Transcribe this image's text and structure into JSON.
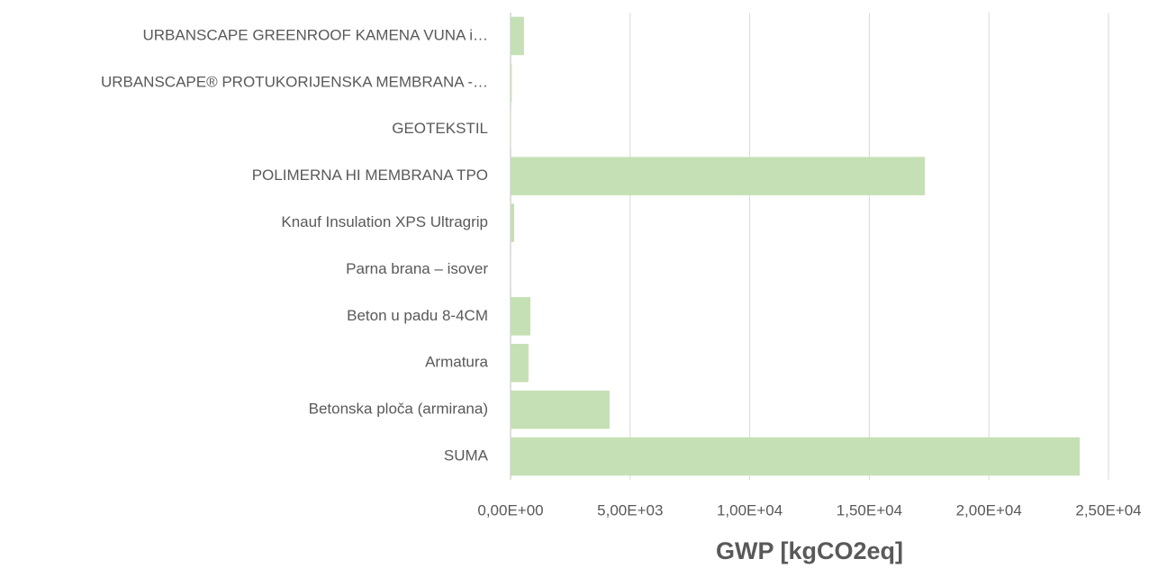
{
  "chart_data": {
    "type": "bar",
    "orientation": "horizontal",
    "categories": [
      "URBANSCAPE GREENROOF KAMENA VUNA i…",
      "URBANSCAPE® PROTUKORIJENSKA MEMBRANA -…",
      "GEOTEKSTIL",
      "POLIMERNA HI MEMBRANA TPO",
      "Knauf Insulation XPS Ultragrip",
      "Parna brana – isover",
      "Beton u padu 8-4CM",
      "Armatura",
      "Betonska ploča (armirana)",
      "SUMA"
    ],
    "values": [
      560,
      50,
      20,
      17320,
      150,
      10,
      830,
      750,
      4140,
      23800
    ],
    "color": "#c5e0b4",
    "xlim": [
      0,
      25000
    ],
    "xticks": [
      {
        "value": 0,
        "label": "0,00E+00"
      },
      {
        "value": 5000,
        "label": "5,00E+03"
      },
      {
        "value": 10000,
        "label": "1,00E+04"
      },
      {
        "value": 15000,
        "label": "1,50E+04"
      },
      {
        "value": 20000,
        "label": "2,00E+04"
      },
      {
        "value": 25000,
        "label": "2,50E+04"
      }
    ],
    "x_label": "GWP [kgCO2eq]",
    "grid": true
  }
}
